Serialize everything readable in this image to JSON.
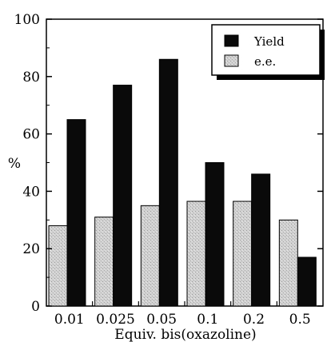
{
  "chart_data": {
    "type": "bar",
    "title": "",
    "xlabel": "Equiv. bis(oxazoline)",
    "ylabel": "%",
    "ylim": [
      0,
      100
    ],
    "yticks": [
      "0",
      "20",
      "40",
      "60",
      "80",
      "100"
    ],
    "categories": [
      "0.01",
      "0.025",
      "0.05",
      "0.1",
      "0.2",
      "0.5"
    ],
    "series": [
      {
        "name": "e.e.",
        "values": [
          28,
          31,
          35,
          36.5,
          36.5,
          30
        ],
        "color": "#d4d4d4"
      },
      {
        "name": "Yield",
        "values": [
          65,
          77,
          86,
          50,
          46,
          17
        ],
        "color": "#0a0a0a"
      }
    ],
    "legend_position": "top-right",
    "grid": false
  }
}
